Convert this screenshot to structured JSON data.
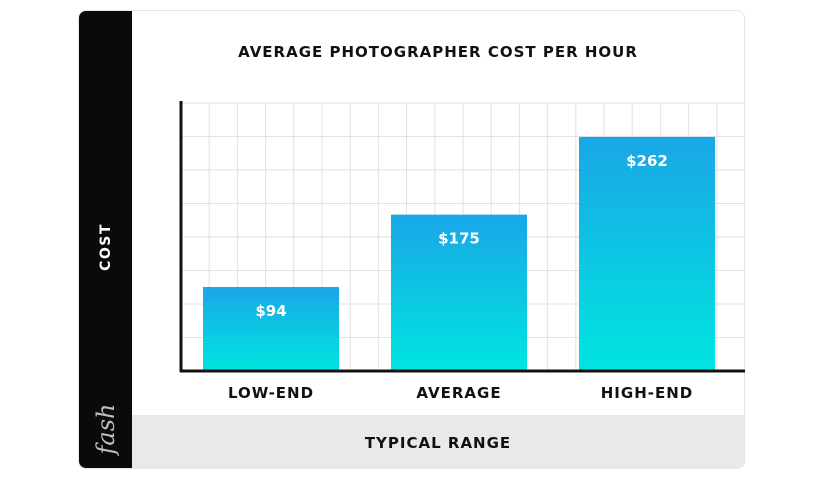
{
  "chart_data": {
    "type": "bar",
    "title": "AVERAGE PHOTOGRAPHER COST PER HOUR",
    "ylabel": "COST",
    "xlabel": "TYPICAL RANGE",
    "categories": [
      "LOW-END",
      "AVERAGE",
      "HIGH-END"
    ],
    "values": [
      94,
      175,
      262
    ],
    "value_labels": [
      "$94",
      "$175",
      "$262"
    ],
    "ylim": [
      0,
      300
    ],
    "grid": true,
    "colors": {
      "bar_top": "#1aa6e6",
      "bar_bottom": "#00e5e0",
      "axis": "#111111",
      "grid": "#e2e2e2"
    }
  },
  "brand": {
    "name": "fash"
  }
}
